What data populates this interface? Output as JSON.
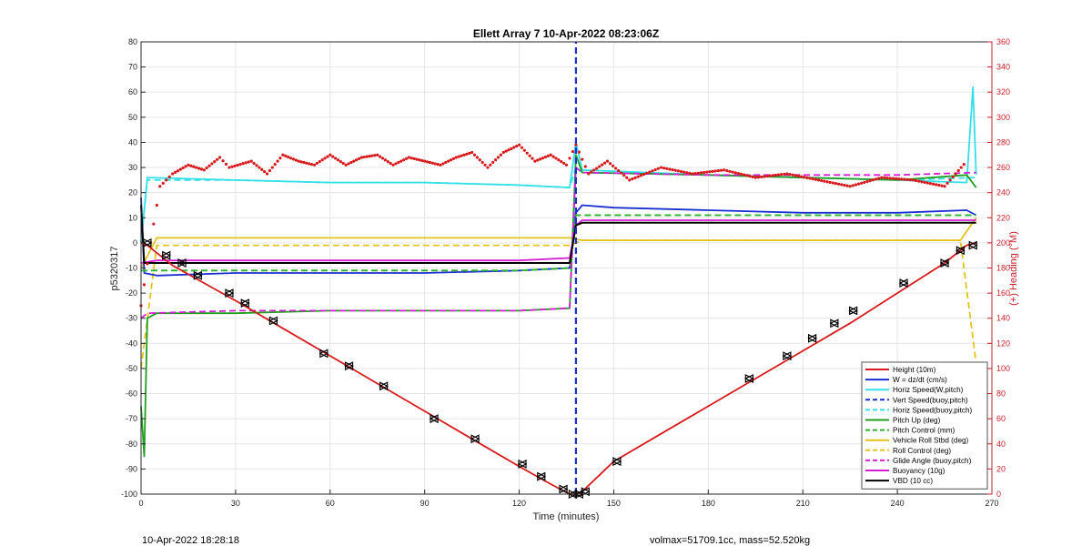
{
  "footer": {
    "timestamp": "10-Apr-2022 18:28:18",
    "info": "volmax=51709.1cc, mass=52.520kg"
  },
  "chart_data": {
    "type": "line",
    "title": "Ellett Array 7 10-Apr-2022 08:23:06Z",
    "xlabel": "Time (minutes)",
    "ylabel": "p5320317",
    "ylabel_right": "(+) Heading (°M)",
    "xlim": [
      0,
      270
    ],
    "ylim": [
      -100,
      80
    ],
    "ylim_right": [
      0,
      360
    ],
    "xticks": [
      0,
      30,
      60,
      90,
      120,
      150,
      180,
      210,
      240,
      270
    ],
    "yticks": [
      -100,
      -90,
      -80,
      -70,
      -60,
      -50,
      -40,
      -30,
      -20,
      -10,
      0,
      10,
      20,
      30,
      40,
      50,
      60,
      70,
      80
    ],
    "yticks_right": [
      0,
      20,
      40,
      60,
      80,
      100,
      120,
      140,
      160,
      180,
      200,
      220,
      240,
      260,
      280,
      300,
      320,
      340,
      360
    ],
    "legend_position": "bottom-right",
    "colors": {
      "height": "#d7191c",
      "w": "#1a2fcf",
      "horiz": "#33e0e8",
      "vert_buoy": "#1a2fcf",
      "pitch_up": "#1f9e1f",
      "pitch_control": "#2fb52f",
      "roll": "#e3c21b",
      "glide": "#d61ed6",
      "buoyancy": "#d61ed6",
      "vbd": "#000000",
      "heading": "#d7191c"
    },
    "series": [
      {
        "name": "Height (10m)",
        "x": [
          0,
          2,
          10,
          20,
          30,
          45,
          60,
          75,
          90,
          105,
          120,
          130,
          136,
          138,
          140,
          150,
          165,
          180,
          195,
          210,
          225,
          240,
          255,
          262,
          265
        ],
        "y": [
          0,
          -1,
          -9,
          -16,
          -23,
          -34,
          -45,
          -56,
          -67,
          -78,
          -89,
          -96,
          -100,
          -100,
          -99,
          -87,
          -76,
          -65,
          -54,
          -43,
          -32,
          -20,
          -8,
          -1,
          0
        ]
      },
      {
        "name": "W = dz/dt (cm/s)",
        "x": [
          0,
          1,
          5,
          30,
          60,
          90,
          120,
          136,
          138,
          140,
          150,
          180,
          210,
          240,
          262,
          265
        ],
        "y": [
          18,
          -12,
          -13,
          -12,
          -12,
          -12,
          -11,
          -10,
          12,
          15,
          14,
          13,
          12,
          12,
          13,
          11
        ]
      },
      {
        "name": "Horiz Speed(W,pitch)",
        "x": [
          0,
          2,
          30,
          60,
          90,
          120,
          136,
          138,
          140,
          180,
          210,
          240,
          262,
          264,
          265
        ],
        "y": [
          0,
          26,
          25,
          24,
          24,
          23,
          22,
          40,
          29,
          27,
          26,
          25,
          24,
          62,
          27
        ]
      },
      {
        "name": "Vert Speed(buoy,pitch)",
        "x": [
          138,
          138
        ],
        "y": [
          -100,
          80
        ]
      },
      {
        "name": "Horiz Speed(buoy,pitch)",
        "x": [
          0,
          2,
          30,
          60,
          90,
          120,
          136,
          138,
          140,
          180,
          210,
          240,
          265
        ],
        "y": [
          0,
          25,
          25,
          24,
          24,
          23,
          22,
          30,
          28,
          27,
          26,
          25,
          26
        ]
      },
      {
        "name": "Pitch Up (deg)",
        "x": [
          0,
          1,
          2,
          5,
          30,
          60,
          90,
          120,
          136,
          138,
          140,
          180,
          210,
          240,
          262,
          265
        ],
        "y": [
          -65,
          -85,
          -30,
          -28,
          -28,
          -27,
          -27,
          -27,
          -26,
          35,
          28,
          27,
          26,
          25,
          27,
          22
        ]
      },
      {
        "name": "Pitch Control (mm)",
        "x": [
          0,
          5,
          30,
          60,
          90,
          120,
          136,
          138,
          140,
          180,
          210,
          240,
          265
        ],
        "y": [
          -11,
          -11,
          -11,
          -11,
          -11,
          -11,
          -10,
          11,
          11,
          11,
          11,
          11,
          11
        ]
      },
      {
        "name": "Vehicle Roll Stbd (deg)",
        "x": [
          0,
          5,
          20,
          40,
          60,
          80,
          100,
          120,
          136,
          140,
          160,
          180,
          200,
          220,
          240,
          260,
          265
        ],
        "y": [
          -10,
          2,
          2,
          2,
          2,
          2,
          2,
          2,
          2,
          1,
          1,
          1,
          1,
          1,
          1,
          1,
          10
        ]
      },
      {
        "name": "Roll Control (deg)",
        "x": [
          0,
          5,
          20,
          40,
          60,
          80,
          100,
          120,
          136,
          140,
          160,
          180,
          200,
          220,
          240,
          260,
          265
        ],
        "y": [
          -50,
          -1,
          -1,
          -1,
          -1,
          -1,
          -1,
          -1,
          -1,
          1,
          1,
          1,
          1,
          1,
          1,
          1,
          -48
        ]
      },
      {
        "name": "Glide Angle (buoy,pitch)",
        "x": [
          0,
          2,
          30,
          60,
          90,
          120,
          136,
          138,
          140,
          180,
          210,
          240,
          265
        ],
        "y": [
          -30,
          -28,
          -27,
          -27,
          -27,
          -27,
          -26,
          30,
          28,
          27,
          27,
          27,
          28
        ]
      },
      {
        "name": "Buoyancy (10g)",
        "x": [
          0,
          5,
          30,
          60,
          90,
          120,
          136,
          138,
          140,
          180,
          210,
          240,
          265
        ],
        "y": [
          -8,
          -7,
          -7,
          -7,
          -7,
          -7,
          -6,
          7,
          9,
          9,
          9,
          9,
          9
        ]
      },
      {
        "name": "VBD (10 cc)",
        "x": [
          0,
          1,
          5,
          30,
          60,
          90,
          120,
          136,
          138,
          140,
          180,
          210,
          240,
          265
        ],
        "y": [
          15,
          -8,
          -8,
          -8,
          -8,
          -8,
          -8,
          -8,
          7,
          8,
          8,
          8,
          8,
          8
        ]
      }
    ],
    "heading": {
      "axis": "right",
      "x": [
        0,
        3,
        6,
        10,
        15,
        20,
        25,
        28,
        35,
        40,
        45,
        50,
        55,
        60,
        65,
        70,
        75,
        80,
        85,
        90,
        95,
        100,
        105,
        110,
        115,
        120,
        125,
        130,
        135,
        138,
        142,
        148,
        155,
        165,
        175,
        185,
        195,
        205,
        215,
        225,
        235,
        245,
        255,
        262
      ],
      "y": [
        150,
        200,
        245,
        255,
        262,
        258,
        268,
        260,
        265,
        255,
        270,
        265,
        262,
        270,
        262,
        268,
        270,
        262,
        268,
        265,
        262,
        268,
        272,
        260,
        272,
        278,
        265,
        270,
        262,
        278,
        255,
        265,
        250,
        260,
        255,
        258,
        252,
        255,
        250,
        245,
        252,
        250,
        245,
        265
      ]
    },
    "markers": {
      "x": [
        2,
        8,
        13,
        18,
        28,
        33,
        42,
        58,
        66,
        77,
        93,
        106,
        121,
        127,
        134,
        137,
        139,
        141,
        151,
        193,
        205,
        213,
        220,
        226,
        242,
        255,
        260,
        264
      ],
      "y": [
        0,
        -5,
        -8,
        -13,
        -20,
        -24,
        -31,
        -44,
        -49,
        -57,
        -70,
        -78,
        -88,
        -93,
        -98,
        -100,
        -100,
        -99,
        -87,
        -54,
        -45,
        -38,
        -32,
        -27,
        -16,
        -8,
        -3,
        -1
      ]
    }
  }
}
